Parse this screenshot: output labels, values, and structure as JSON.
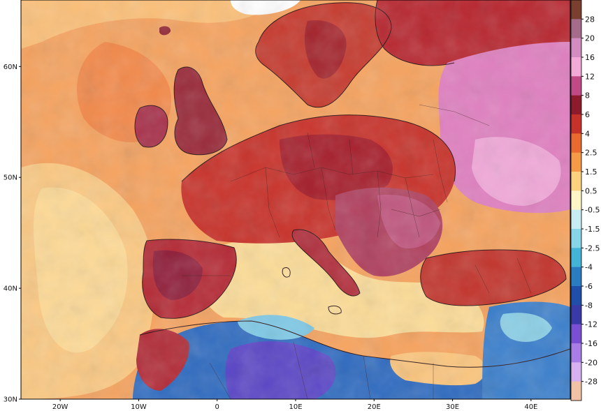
{
  "map": {
    "type": "temperature-anomaly-map",
    "region": "Europe, North Africa and Middle East",
    "lat_labels": [
      "60N",
      "50N",
      "40N",
      "30N"
    ],
    "lon_labels": [
      "20W",
      "10W",
      "0",
      "10E",
      "20E",
      "30E",
      "40E"
    ],
    "lat_range": [
      30,
      66
    ],
    "lon_range": [
      -25,
      45
    ]
  },
  "colorbar": {
    "labels": [
      "28",
      "20",
      "16",
      "12",
      "8",
      "6",
      "4",
      "2.5",
      "1.5",
      "0.5",
      "-0.5",
      "-1.5",
      "-2.5",
      "-4",
      "-6",
      "-8",
      "-12",
      "-16",
      "-20",
      "-28"
    ],
    "colors": [
      "#7a3f2e",
      "#a56b8a",
      "#d28cc0",
      "#f2a9d8",
      "#c04a85",
      "#8e1b2c",
      "#c4322a",
      "#e86a2e",
      "#f59a47",
      "#fcd27f",
      "#fff6c8",
      "#c7ecf3",
      "#86d4e6",
      "#43b3d6",
      "#2a7cc0",
      "#1f4fa8",
      "#3a3aa6",
      "#7b4fd3",
      "#a87de6",
      "#d7b0ef",
      "#f2c2a6"
    ]
  },
  "palette": {
    "ocean_warm": "#f8a15a",
    "ocean_mild": "#fcd085",
    "land_hot": "#c8302a",
    "land_very_hot": "#8f1e2e",
    "anomaly_pink": "#e07ac0",
    "cold_blue": "#2f6ec0",
    "cold_purple": "#6a4bc8",
    "borders": "#2a1010"
  }
}
